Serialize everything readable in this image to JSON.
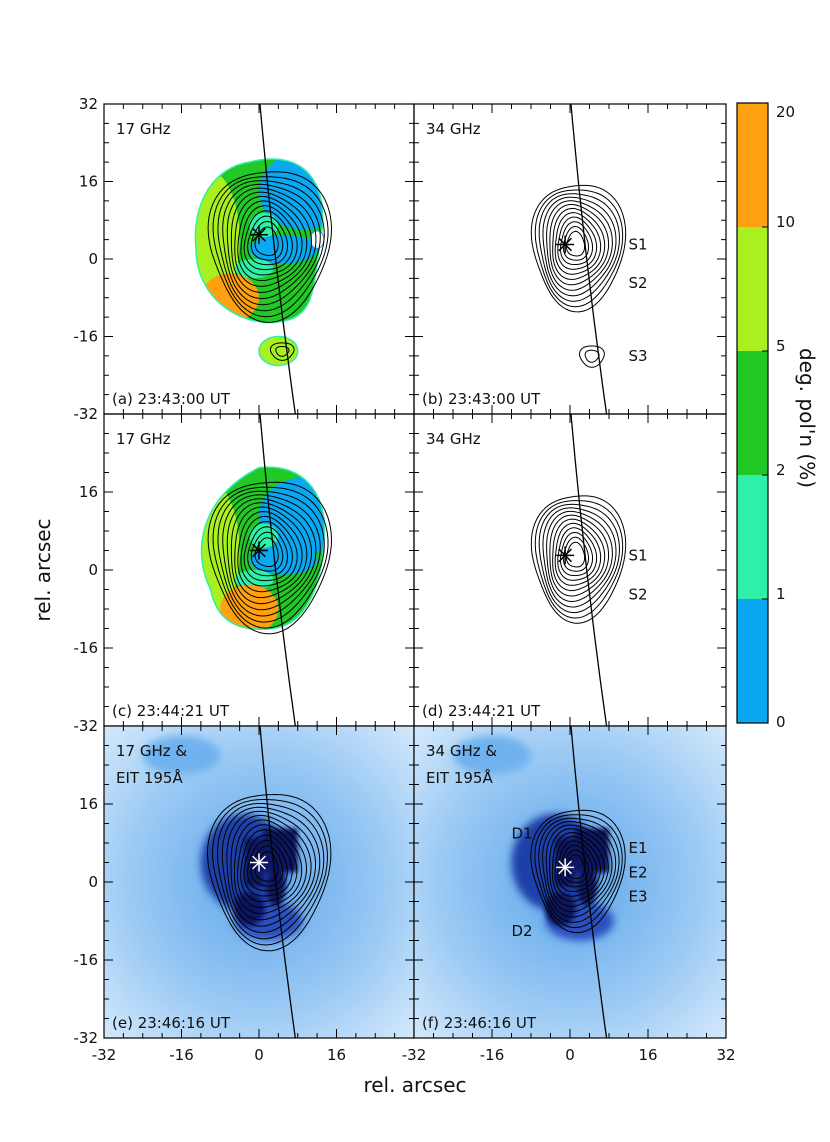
{
  "chart_data": {
    "type": "heatmap",
    "xlabel": "rel. arcsec",
    "ylabel": "rel. arcsec",
    "xlim": [
      -32,
      32
    ],
    "ylim": [
      -32,
      32
    ],
    "x_ticks": [
      "-32",
      "-16",
      "0",
      "16",
      "32"
    ],
    "y_ticks": [
      "32",
      "16",
      "0",
      "-16",
      "-32"
    ],
    "colorbar": {
      "label": "deg. pol'n (%)",
      "levels": [
        "0",
        "1",
        "2",
        "5",
        "10",
        "20"
      ],
      "colors": [
        "#0aa8f0",
        "#2ef0a8",
        "#22c825",
        "#a8f020",
        "#ffa010"
      ]
    },
    "panels": [
      {
        "id": "a",
        "title": "17 GHz",
        "subtitle": "",
        "label": "(a) 23:43:00 UT",
        "kind": "pol",
        "star": [
          0,
          5
        ],
        "annotations": []
      },
      {
        "id": "b",
        "title": "34 GHz",
        "subtitle": "",
        "label": "(b) 23:43:00 UT",
        "kind": "contour",
        "star": [
          -1,
          3
        ],
        "annotations": [
          {
            "text": "S1",
            "x": 12,
            "y": 3
          },
          {
            "text": "S2",
            "x": 12,
            "y": -5
          },
          {
            "text": "S3",
            "x": 12,
            "y": -20
          }
        ]
      },
      {
        "id": "c",
        "title": "17 GHz",
        "subtitle": "",
        "label": "(c) 23:44:21 UT",
        "kind": "pol",
        "star": [
          0,
          4
        ],
        "annotations": []
      },
      {
        "id": "d",
        "title": "34 GHz",
        "subtitle": "",
        "label": "(d) 23:44:21 UT",
        "kind": "contour",
        "star": [
          -1,
          3
        ],
        "annotations": [
          {
            "text": "S1",
            "x": 12,
            "y": 3
          },
          {
            "text": "S2",
            "x": 12,
            "y": -5
          }
        ]
      },
      {
        "id": "e",
        "title": "17 GHz &",
        "subtitle": "EIT 195Å",
        "label": "(e) 23:46:16 UT",
        "kind": "eit",
        "star": [
          0,
          4
        ],
        "annotations": []
      },
      {
        "id": "f",
        "title": "34 GHz &",
        "subtitle": "EIT 195Å",
        "label": "(f) 23:46:16 UT",
        "kind": "eit",
        "star": [
          -1,
          3
        ],
        "annotations": [
          {
            "text": "D1",
            "x": -12,
            "y": 10
          },
          {
            "text": "D2",
            "x": -12,
            "y": -10
          },
          {
            "text": "E1",
            "x": 12,
            "y": 7
          },
          {
            "text": "E2",
            "x": 12,
            "y": 2
          },
          {
            "text": "E3",
            "x": 12,
            "y": -3
          }
        ]
      }
    ]
  }
}
